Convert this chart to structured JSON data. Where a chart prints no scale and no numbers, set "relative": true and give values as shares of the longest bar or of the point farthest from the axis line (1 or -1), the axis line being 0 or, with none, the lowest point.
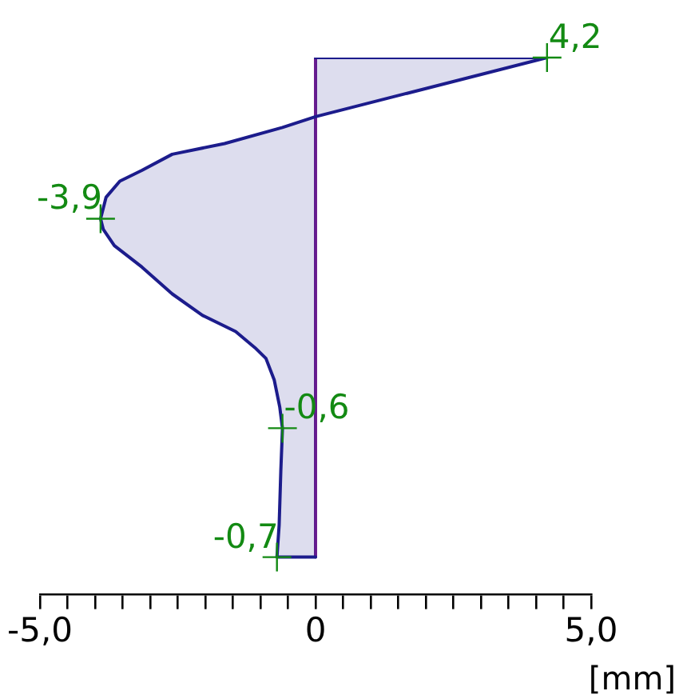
{
  "chart_data": {
    "type": "area",
    "relative": true,
    "xlabel": "[mm]",
    "xlim": [
      -5,
      5
    ],
    "xticks": [
      {
        "value": -5,
        "label": "-5,0"
      },
      {
        "value": -4.5,
        "label": null
      },
      {
        "value": -4,
        "label": null
      },
      {
        "value": -3.5,
        "label": null
      },
      {
        "value": -3,
        "label": null
      },
      {
        "value": -2.5,
        "label": null
      },
      {
        "value": -2,
        "label": null
      },
      {
        "value": -1.5,
        "label": null
      },
      {
        "value": -1,
        "label": null
      },
      {
        "value": -0.5,
        "label": null
      },
      0,
      {
        "value": 0.5,
        "label": null
      },
      {
        "value": 1,
        "label": null
      },
      {
        "value": 1.5,
        "label": null
      },
      {
        "value": 2,
        "label": null
      },
      {
        "value": 2.5,
        "label": null
      },
      {
        "value": 3,
        "label": null
      },
      {
        "value": 3.5,
        "label": null
      },
      {
        "value": 4,
        "label": null
      },
      {
        "value": 4.5,
        "label": null
      },
      {
        "value": 5,
        "label": "5,0"
      }
    ],
    "tick_labels": "x",
    "series": [
      {
        "type": "area",
        "color": "#1c1c8c",
        "x": [
          0,
          4.2,
          0,
          -0.6,
          -1.65,
          -2.6,
          -3.15,
          -3.55,
          -3.8,
          -3.9,
          -3.85,
          -3.65,
          -3.15,
          -2.6,
          -2.05,
          -1.45,
          -1.1,
          -0.9,
          -0.75,
          -0.65,
          -0.6,
          -0.63,
          -0.66,
          -0.7,
          0
        ],
        "values": [
          1,
          1,
          0.89,
          0.87,
          0.84,
          0.82,
          0.79,
          0.77,
          0.74,
          0.7,
          0.68,
          0.65,
          0.61,
          0.56,
          0.52,
          0.49,
          0.46,
          0.44,
          0.4,
          0.35,
          0.31,
          0.23,
          0.13,
          0.07,
          0.07
        ]
      },
      {
        "type": "line",
        "color": "#6b1d8f",
        "x": [
          0,
          0
        ],
        "values": [
          0.07,
          1
        ]
      }
    ],
    "annotations": [
      {
        "text": "4,2",
        "x": 4.2,
        "y": 1
      },
      {
        "text": "-3,9",
        "x": -3.9,
        "y": 0.7
      },
      {
        "text": "-0,6",
        "x": -0.6,
        "y": 0.31
      },
      {
        "text": "-0,7",
        "x": -0.7,
        "y": 0.07
      }
    ]
  }
}
